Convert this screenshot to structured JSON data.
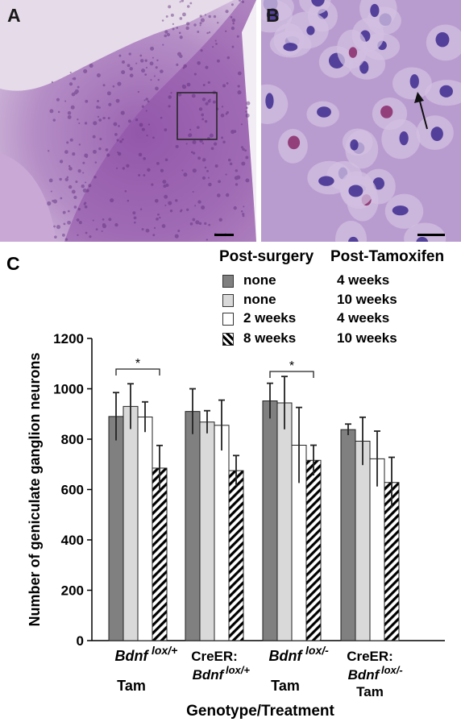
{
  "panels": {
    "a_label": "A",
    "b_label": "B",
    "c_label": "C"
  },
  "legend": {
    "header_surgery": "Post-surgery",
    "header_tamoxifen": "Post-Tamoxifen",
    "entries": [
      {
        "surgery": "none",
        "tamoxifen": "4 weeks",
        "fill": "gray"
      },
      {
        "surgery": "none",
        "tamoxifen": "10 weeks",
        "fill": "light-gray"
      },
      {
        "surgery": "2 weeks",
        "tamoxifen": "4 weeks",
        "fill": "white"
      },
      {
        "surgery": "8 weeks",
        "tamoxifen": "10 weeks",
        "fill": "hatched"
      }
    ]
  },
  "colors": {
    "gray": "#808080",
    "light_gray": "#d9d9d9",
    "white": "#ffffff",
    "hatch": "#000000",
    "tissue": "#a77bb8",
    "nuclei": "#3a2a8a"
  },
  "chart_data": {
    "type": "bar",
    "ylabel": "Number of geniculate ganglion neurons",
    "xlabel": "Genotype/Treatment",
    "ylim": [
      0,
      1200
    ],
    "yticks": [
      "0",
      "200",
      "400",
      "600",
      "800",
      "1000",
      "1200"
    ],
    "groups": [
      {
        "label_main": "Bdnf",
        "label_sup": "lox/+",
        "label_pre": "",
        "label_sub": "Tam"
      },
      {
        "label_main": "Bdnf",
        "label_sup": "lox/+",
        "label_pre": "CreER:",
        "label_sub": ""
      },
      {
        "label_main": "Bdnf",
        "label_sup": "lox/-",
        "label_pre": "",
        "label_sub": "Tam"
      },
      {
        "label_main": "Bdnf",
        "label_sup": "lox/-",
        "label_pre": "CreER:",
        "label_sub": "Tam"
      }
    ],
    "series": [
      {
        "values": [
          890,
          910,
          952,
          838
        ],
        "errors": [
          95,
          90,
          70,
          22
        ]
      },
      {
        "values": [
          930,
          868,
          944,
          792
        ],
        "errors": [
          90,
          45,
          105,
          95
        ]
      },
      {
        "values": [
          888,
          855,
          776,
          722
        ],
        "errors": [
          60,
          100,
          150,
          110
        ]
      },
      {
        "values": [
          685,
          675,
          716,
          628
        ],
        "errors": [
          90,
          60,
          60,
          100
        ]
      }
    ],
    "significance": [
      {
        "group": 0,
        "from_series": 0,
        "to_series": 3,
        "label": "*"
      },
      {
        "group": 2,
        "from_series": 0,
        "to_series": 3,
        "label": "*"
      }
    ]
  }
}
